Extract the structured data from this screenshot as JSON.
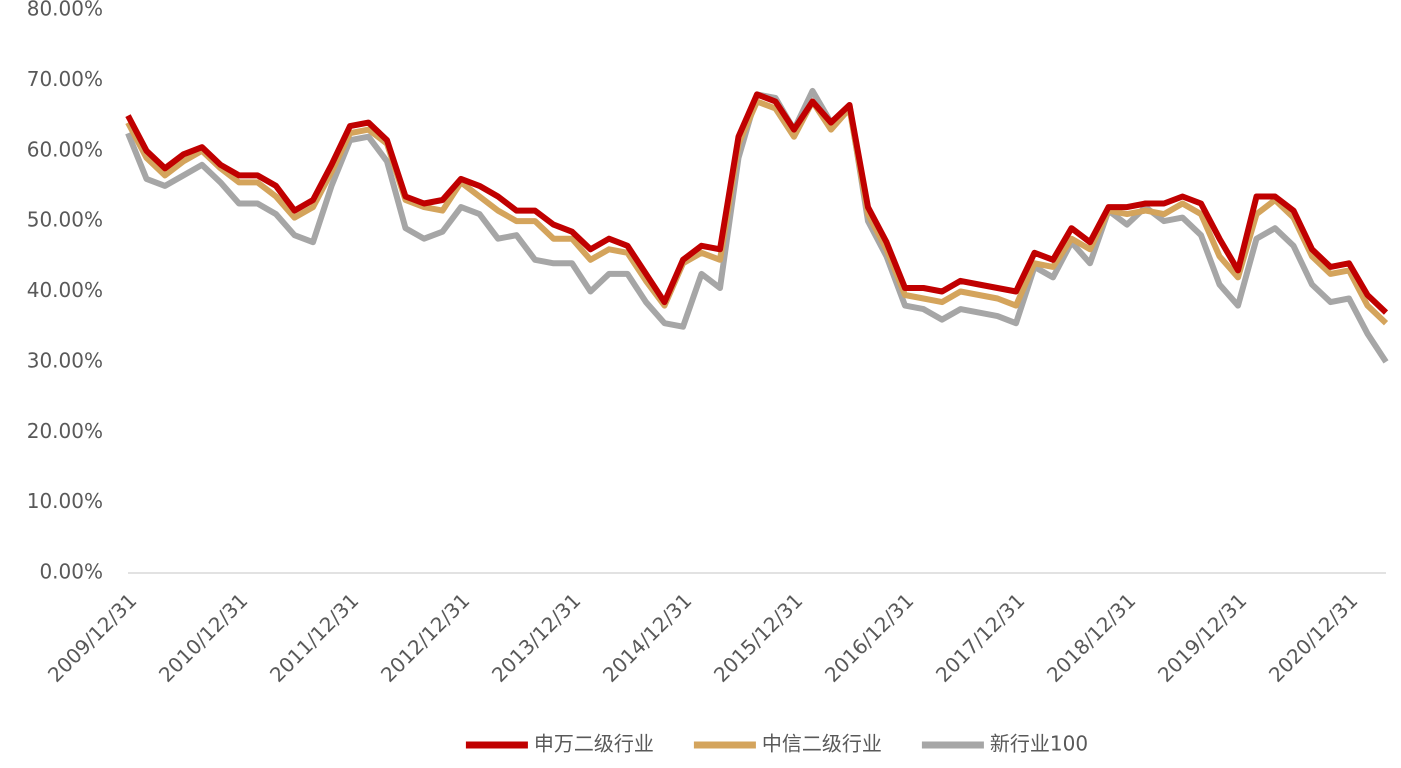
{
  "chart_data": {
    "type": "line",
    "categories": [
      "2009/12/31",
      null,
      null,
      null,
      null,
      null,
      "2010/12/31",
      null,
      null,
      null,
      null,
      null,
      "2011/12/31",
      null,
      null,
      null,
      null,
      null,
      "2012/12/31",
      null,
      null,
      null,
      null,
      null,
      "2013/12/31",
      null,
      null,
      null,
      null,
      null,
      "2014/12/31",
      null,
      null,
      null,
      null,
      null,
      "2015/12/31",
      null,
      null,
      null,
      null,
      null,
      "2016/12/31",
      null,
      null,
      null,
      null,
      null,
      "2017/12/31",
      null,
      null,
      null,
      null,
      null,
      "2018/12/31",
      null,
      null,
      null,
      null,
      null,
      "2019/12/31",
      null,
      null,
      null,
      null,
      null,
      "2020/12/31",
      null,
      null
    ],
    "series": [
      {
        "name": "申万二级行业",
        "color": "#c00000",
        "values": [
          65,
          60,
          57.5,
          59.5,
          60.5,
          58,
          56.5,
          56.5,
          55,
          51.5,
          53,
          58,
          63.5,
          64,
          61.5,
          53.5,
          52.5,
          53,
          56,
          55,
          53.5,
          51.5,
          51.5,
          49.5,
          48.5,
          46,
          47.5,
          46.5,
          42.5,
          38.5,
          44.5,
          46.5,
          46,
          62,
          68,
          67,
          63,
          67,
          64,
          66.5,
          52,
          47,
          40.5,
          40.5,
          40,
          41.5,
          41,
          40.5,
          40,
          45.5,
          44.5,
          49,
          47,
          52,
          52,
          52.5,
          52.5,
          53.5,
          52.5,
          47.5,
          43,
          53.5,
          53.5,
          51.5,
          46,
          43.5,
          44,
          39.5,
          37
        ]
      },
      {
        "name": "中信二级行业",
        "color": "#d4a45c",
        "values": [
          64,
          59,
          56.5,
          58.5,
          60,
          57.5,
          55.5,
          55.5,
          53.5,
          50.5,
          52,
          57,
          62.5,
          63,
          61,
          53,
          52,
          51.5,
          55.5,
          53.5,
          51.5,
          50,
          50,
          47.5,
          47.5,
          44.5,
          46,
          45.5,
          41.5,
          38,
          44,
          45.5,
          44.5,
          61,
          67,
          66,
          62,
          67,
          63,
          66,
          51,
          46,
          39.5,
          39,
          38.5,
          40,
          39.5,
          39,
          38,
          44,
          43.5,
          47.5,
          46,
          51.5,
          51,
          51.5,
          51,
          52.5,
          51,
          45,
          42,
          51,
          53,
          50.5,
          45,
          42.5,
          43,
          38,
          35.5
        ]
      },
      {
        "name": "新行业100",
        "color": "#a6a6a6",
        "values": [
          62.5,
          56,
          55,
          56.5,
          58,
          55.5,
          52.5,
          52.5,
          51,
          48,
          47,
          55,
          61.5,
          62,
          58.5,
          49,
          47.5,
          48.5,
          52,
          51,
          47.5,
          48,
          44.5,
          44,
          44,
          40,
          42.5,
          42.5,
          38.5,
          35.5,
          35,
          42.5,
          40.5,
          59,
          68,
          67.5,
          63,
          68.5,
          64,
          66.5,
          50,
          45,
          38,
          37.5,
          36,
          37.5,
          37,
          36.5,
          35.5,
          43.5,
          42,
          47,
          44,
          51.5,
          49.5,
          52,
          50,
          50.5,
          48,
          41,
          38,
          47.5,
          49,
          46.5,
          41,
          38.5,
          39,
          34,
          30
        ]
      }
    ],
    "ylim": [
      0,
      80
    ],
    "yticks": [
      {
        "value": 0,
        "label": "0.00%"
      },
      {
        "value": 10,
        "label": "10.00%"
      },
      {
        "value": 20,
        "label": "20.00%"
      },
      {
        "value": 30,
        "label": "30.00%"
      },
      {
        "value": 40,
        "label": "40.00%"
      },
      {
        "value": 50,
        "label": "50.00%"
      },
      {
        "value": 60,
        "label": "60.00%"
      },
      {
        "value": 70,
        "label": "70.00%"
      },
      {
        "value": 80,
        "label": "80.00%"
      }
    ],
    "grid": false,
    "legend": "bottom"
  }
}
